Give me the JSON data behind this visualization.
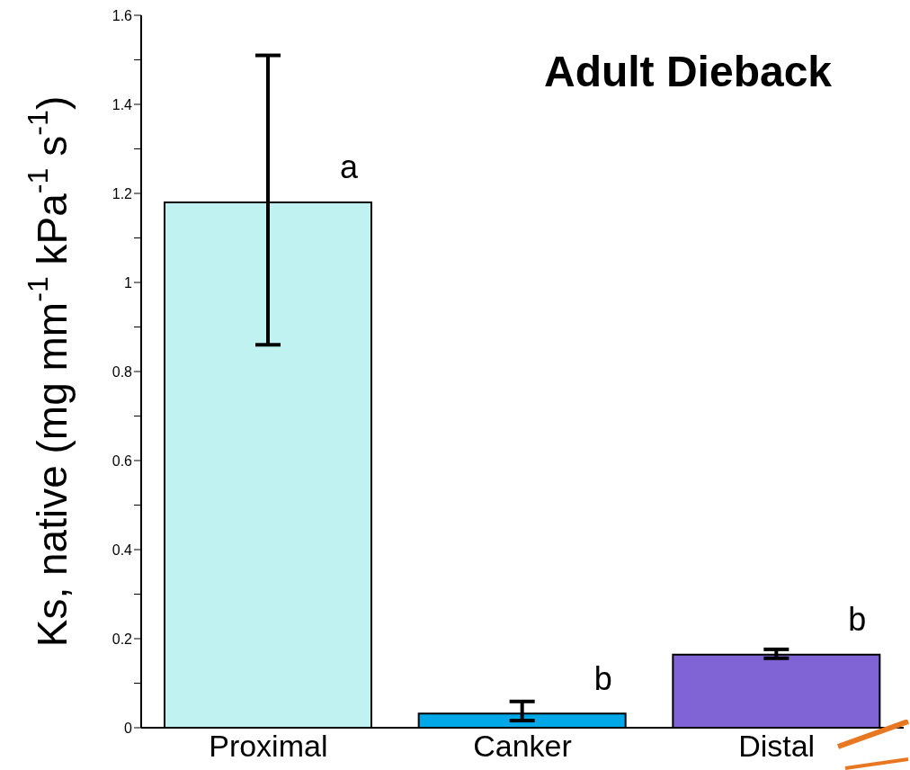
{
  "chart_data": {
    "type": "bar",
    "title": "Adult Dieback",
    "ylabel": "Ks, native (mg mm$^{-1}$ kPa$^{-1}$ s$^{-1}$)",
    "categories": [
      "Proximal",
      "Canker",
      "Distal"
    ],
    "values": [
      1.18,
      0.032,
      0.164
    ],
    "colors": [
      "#c0f2f2",
      "#00a8e8",
      "#8064d6"
    ],
    "errors": [
      [
        0.86,
        1.51
      ],
      [
        0.016,
        0.059
      ],
      [
        0.156,
        0.176
      ]
    ],
    "ylim": [
      0,
      1.6
    ],
    "yticks": [
      0,
      {
        "value": 0.1,
        "label": null
      },
      0.2,
      {
        "value": 0.3,
        "label": null
      },
      0.4,
      {
        "value": 0.5,
        "label": null
      },
      0.6,
      {
        "value": 0.7,
        "label": null
      },
      0.8,
      {
        "value": 0.9,
        "label": null
      },
      1,
      {
        "value": 1.1,
        "label": null
      },
      1.2,
      {
        "value": 1.3,
        "label": null
      },
      1.4,
      {
        "value": 1.5,
        "label": null
      },
      1.6
    ],
    "annotations": [
      "a",
      "b",
      "b"
    ],
    "grid": false,
    "legend": false
  }
}
